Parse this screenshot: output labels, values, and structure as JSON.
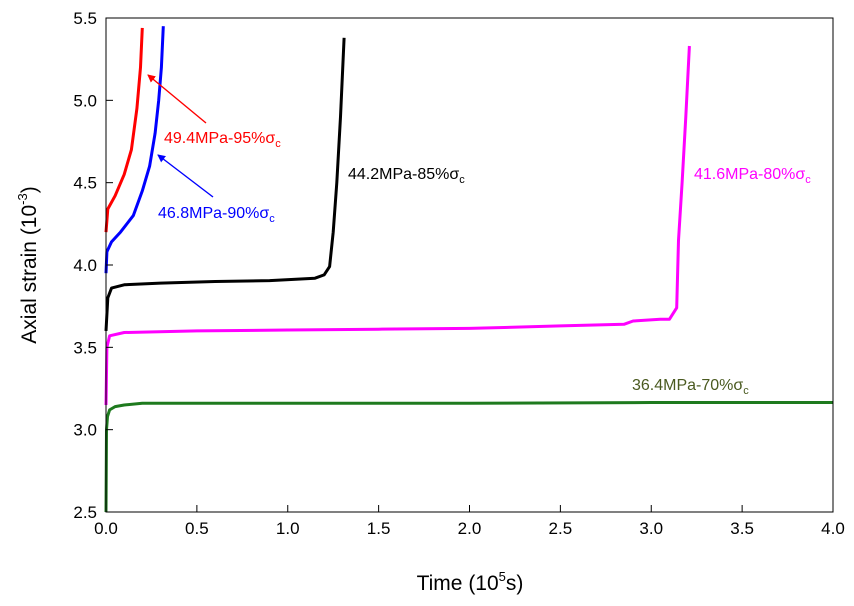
{
  "chart_data": {
    "type": "line",
    "xlabel": {
      "text": "Time (10",
      "sup": "5",
      "after": "s)"
    },
    "ylabel": {
      "text": "Axial strain (10",
      "sup": "-3",
      "after": ")"
    },
    "xlim": [
      0,
      4.0
    ],
    "ylim": [
      2.5,
      5.5
    ],
    "xticks": [
      "0.0",
      "0.5",
      "1.0",
      "1.5",
      "2.0",
      "2.5",
      "3.0",
      "3.5",
      "4.0"
    ],
    "yticks": [
      "2.5",
      "3.0",
      "3.5",
      "4.0",
      "4.5",
      "5.0",
      "5.5"
    ],
    "grid": false,
    "series": [
      {
        "name": "36.4MPa-70%σc",
        "label": {
          "main": "36.4MPa-70%σ",
          "sub": "c"
        },
        "color": "#1e7a1e",
        "label_color": "#4a5a20",
        "points": [
          [
            0,
            2.5
          ],
          [
            0.003,
            3.0
          ],
          [
            0.008,
            3.08
          ],
          [
            0.02,
            3.12
          ],
          [
            0.05,
            3.14
          ],
          [
            0.1,
            3.15
          ],
          [
            0.2,
            3.16
          ],
          [
            0.5,
            3.16
          ],
          [
            1.0,
            3.16
          ],
          [
            2.0,
            3.16
          ],
          [
            3.0,
            3.165
          ],
          [
            4.0,
            3.165
          ]
        ]
      },
      {
        "name": "41.6MPa-80%σc",
        "label": {
          "main": "41.6MPa-80%σ",
          "sub": "c"
        },
        "color": "#ff00ff",
        "label_color": "#ff00ff",
        "points": [
          [
            0,
            3.15
          ],
          [
            0.005,
            3.5
          ],
          [
            0.02,
            3.57
          ],
          [
            0.1,
            3.59
          ],
          [
            0.5,
            3.6
          ],
          [
            1.0,
            3.605
          ],
          [
            1.5,
            3.61
          ],
          [
            2.0,
            3.615
          ],
          [
            2.5,
            3.63
          ],
          [
            2.85,
            3.64
          ],
          [
            2.9,
            3.66
          ],
          [
            3.05,
            3.67
          ],
          [
            3.1,
            3.67
          ],
          [
            3.14,
            3.74
          ],
          [
            3.15,
            4.15
          ],
          [
            3.17,
            4.5
          ],
          [
            3.19,
            4.9
          ],
          [
            3.21,
            5.33
          ]
        ]
      },
      {
        "name": "44.2MPa-85%σc",
        "label": {
          "main": "44.2MPa-85%σ",
          "sub": "c"
        },
        "color": "#000000",
        "label_color": "#000000",
        "points": [
          [
            0,
            3.6
          ],
          [
            0.01,
            3.8
          ],
          [
            0.03,
            3.86
          ],
          [
            0.1,
            3.88
          ],
          [
            0.3,
            3.89
          ],
          [
            0.6,
            3.9
          ],
          [
            0.9,
            3.905
          ],
          [
            1.15,
            3.92
          ],
          [
            1.2,
            3.94
          ],
          [
            1.23,
            3.99
          ],
          [
            1.25,
            4.2
          ],
          [
            1.27,
            4.5
          ],
          [
            1.29,
            4.9
          ],
          [
            1.31,
            5.38
          ]
        ]
      },
      {
        "name": "46.8MPa-90%σc",
        "label": {
          "main": "46.8MPa-90%σ",
          "sub": "c"
        },
        "color": "#0000ff",
        "label_color": "#0000ff",
        "points": [
          [
            0,
            3.95
          ],
          [
            0.005,
            4.08
          ],
          [
            0.03,
            4.14
          ],
          [
            0.08,
            4.2
          ],
          [
            0.15,
            4.3
          ],
          [
            0.2,
            4.45
          ],
          [
            0.24,
            4.6
          ],
          [
            0.27,
            4.8
          ],
          [
            0.29,
            5.0
          ],
          [
            0.305,
            5.2
          ],
          [
            0.315,
            5.45
          ]
        ]
      },
      {
        "name": "49.4MPa-95%σc",
        "label": {
          "main": "49.4MPa-95%σ",
          "sub": "c"
        },
        "color": "#ff0000",
        "label_color": "#ff0000",
        "points": [
          [
            0,
            4.2
          ],
          [
            0.01,
            4.34
          ],
          [
            0.05,
            4.42
          ],
          [
            0.1,
            4.55
          ],
          [
            0.14,
            4.7
          ],
          [
            0.17,
            4.95
          ],
          [
            0.19,
            5.2
          ],
          [
            0.2,
            5.44
          ]
        ]
      }
    ]
  }
}
